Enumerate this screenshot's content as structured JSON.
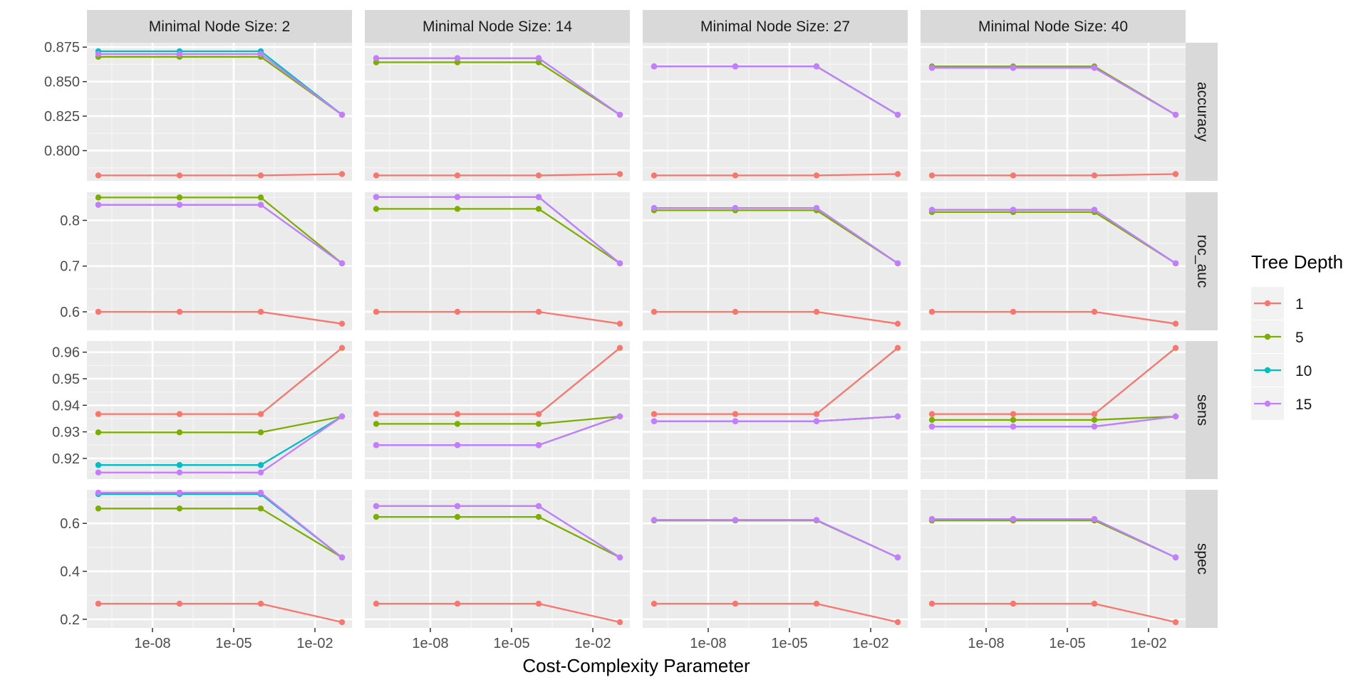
{
  "chart_data": {
    "type": "line",
    "xlabel": "Cost-Complexity Parameter",
    "x_scale": "log10",
    "x_values": [
      1e-10,
      1e-07,
      0.0001,
      0.1
    ],
    "x_ticks": [
      {
        "value": 1e-08,
        "label": "1e-08"
      },
      {
        "value": 1e-05,
        "label": "1e-05"
      },
      {
        "value": 0.01,
        "label": "1e-02"
      }
    ],
    "columns": [
      {
        "label": "Minimal Node Size: 2"
      },
      {
        "label": "Minimal Node Size: 14"
      },
      {
        "label": "Minimal Node Size: 27"
      },
      {
        "label": "Minimal Node Size: 40"
      }
    ],
    "rows": [
      {
        "label": "accuracy",
        "ylim": [
          0.7781,
          0.8782
        ],
        "ticks": [
          {
            "value": 0.8,
            "label": "0.800"
          },
          {
            "value": 0.825,
            "label": "0.825"
          },
          {
            "value": 0.85,
            "label": "0.850"
          },
          {
            "value": 0.875,
            "label": "0.875"
          }
        ]
      },
      {
        "label": "roc_auc",
        "ylim": [
          0.5595,
          0.8615
        ],
        "ticks": [
          {
            "value": 0.6,
            "label": "0.6"
          },
          {
            "value": 0.7,
            "label": "0.7"
          },
          {
            "value": 0.8,
            "label": "0.8"
          }
        ]
      },
      {
        "label": "sens",
        "ylim": [
          0.9122,
          0.9642
        ],
        "ticks": [
          {
            "value": 0.92,
            "label": "0.92"
          },
          {
            "value": 0.93,
            "label": "0.93"
          },
          {
            "value": 0.94,
            "label": "0.94"
          },
          {
            "value": 0.95,
            "label": "0.95"
          },
          {
            "value": 0.96,
            "label": "0.96"
          }
        ]
      },
      {
        "label": "spec",
        "ylim": [
          0.164,
          0.74
        ],
        "ticks": [
          {
            "value": 0.2,
            "label": "0.2"
          },
          {
            "value": 0.4,
            "label": "0.4"
          },
          {
            "value": 0.6,
            "label": "0.6"
          }
        ]
      }
    ],
    "legend": {
      "title": "Tree Depth",
      "position": "right",
      "entries": [
        {
          "label": "1",
          "color": "#F8766D"
        },
        {
          "label": "5",
          "color": "#7CAE00"
        },
        {
          "label": "10",
          "color": "#00BFC4"
        },
        {
          "label": "15",
          "color": "#C77CFF"
        }
      ]
    },
    "series": [
      {
        "name": "1",
        "color": "#F8766D",
        "values": {
          "accuracy": [
            [
              0.782,
              0.782,
              0.782,
              0.783
            ],
            [
              0.782,
              0.782,
              0.782,
              0.783
            ],
            [
              0.782,
              0.782,
              0.782,
              0.783
            ],
            [
              0.782,
              0.782,
              0.782,
              0.783
            ]
          ],
          "roc_auc": [
            [
              0.6,
              0.6,
              0.6,
              0.574
            ],
            [
              0.6,
              0.6,
              0.6,
              0.574
            ],
            [
              0.6,
              0.6,
              0.6,
              0.574
            ],
            [
              0.6,
              0.6,
              0.6,
              0.574
            ]
          ],
          "sens": [
            [
              0.9367,
              0.9367,
              0.9367,
              0.9616
            ],
            [
              0.9367,
              0.9367,
              0.9367,
              0.9616
            ],
            [
              0.9367,
              0.9367,
              0.9367,
              0.9616
            ],
            [
              0.9367,
              0.9367,
              0.9367,
              0.9616
            ]
          ],
          "spec": [
            [
              0.265,
              0.265,
              0.265,
              0.188
            ],
            [
              0.265,
              0.265,
              0.265,
              0.188
            ],
            [
              0.265,
              0.265,
              0.265,
              0.188
            ],
            [
              0.265,
              0.265,
              0.265,
              0.188
            ]
          ]
        }
      },
      {
        "name": "5",
        "color": "#7CAE00",
        "values": {
          "accuracy": [
            [
              0.868,
              0.868,
              0.868,
              0.826
            ],
            [
              0.864,
              0.864,
              0.864,
              0.826
            ],
            [
              0.861,
              0.861,
              0.861,
              0.826
            ],
            [
              0.861,
              0.861,
              0.861,
              0.826
            ]
          ],
          "roc_auc": [
            [
              0.85,
              0.85,
              0.85,
              0.706
            ],
            [
              0.825,
              0.825,
              0.825,
              0.706
            ],
            [
              0.822,
              0.822,
              0.822,
              0.706
            ],
            [
              0.818,
              0.818,
              0.818,
              0.706
            ]
          ],
          "sens": [
            [
              0.9298,
              0.9298,
              0.9298,
              0.9358
            ],
            [
              0.933,
              0.933,
              0.933,
              0.9358
            ],
            [
              0.934,
              0.934,
              0.934,
              0.9358
            ],
            [
              0.9345,
              0.9345,
              0.9345,
              0.9358
            ]
          ],
          "spec": [
            [
              0.662,
              0.662,
              0.662,
              0.458
            ],
            [
              0.627,
              0.627,
              0.627,
              0.458
            ],
            [
              0.612,
              0.612,
              0.612,
              0.458
            ],
            [
              0.612,
              0.612,
              0.612,
              0.458
            ]
          ]
        }
      },
      {
        "name": "10",
        "color": "#00BFC4",
        "values": {
          "accuracy": [
            [
              0.872,
              0.872,
              0.872,
              0.826
            ],
            [
              0.867,
              0.867,
              0.867,
              0.826
            ],
            [
              0.861,
              0.861,
              0.861,
              0.826
            ],
            [
              0.86,
              0.86,
              0.86,
              0.826
            ]
          ],
          "roc_auc": [
            [
              0.834,
              0.834,
              0.834,
              0.706
            ],
            [
              0.851,
              0.851,
              0.851,
              0.706
            ],
            [
              0.827,
              0.827,
              0.827,
              0.706
            ],
            [
              0.823,
              0.823,
              0.823,
              0.706
            ]
          ],
          "sens": [
            [
              0.9175,
              0.9175,
              0.9175,
              0.9358
            ],
            [
              0.925,
              0.925,
              0.925,
              0.9358
            ],
            [
              0.934,
              0.934,
              0.934,
              0.9358
            ],
            [
              0.932,
              0.932,
              0.932,
              0.9358
            ]
          ],
          "spec": [
            [
              0.722,
              0.722,
              0.722,
              0.458
            ],
            [
              0.672,
              0.672,
              0.672,
              0.458
            ],
            [
              0.614,
              0.614,
              0.614,
              0.458
            ],
            [
              0.618,
              0.618,
              0.618,
              0.458
            ]
          ]
        }
      },
      {
        "name": "15",
        "color": "#C77CFF",
        "values": {
          "accuracy": [
            [
              0.87,
              0.87,
              0.87,
              0.826
            ],
            [
              0.867,
              0.867,
              0.867,
              0.826
            ],
            [
              0.861,
              0.861,
              0.861,
              0.826
            ],
            [
              0.86,
              0.86,
              0.86,
              0.826
            ]
          ],
          "roc_auc": [
            [
              0.834,
              0.834,
              0.834,
              0.706
            ],
            [
              0.851,
              0.851,
              0.851,
              0.706
            ],
            [
              0.827,
              0.827,
              0.827,
              0.706
            ],
            [
              0.823,
              0.823,
              0.823,
              0.706
            ]
          ],
          "sens": [
            [
              0.9147,
              0.9147,
              0.9147,
              0.9358
            ],
            [
              0.925,
              0.925,
              0.925,
              0.9358
            ],
            [
              0.934,
              0.934,
              0.934,
              0.9358
            ],
            [
              0.932,
              0.932,
              0.932,
              0.9358
            ]
          ],
          "spec": [
            [
              0.728,
              0.728,
              0.728,
              0.458
            ],
            [
              0.672,
              0.672,
              0.672,
              0.458
            ],
            [
              0.614,
              0.614,
              0.614,
              0.458
            ],
            [
              0.618,
              0.618,
              0.618,
              0.458
            ]
          ]
        }
      }
    ]
  }
}
